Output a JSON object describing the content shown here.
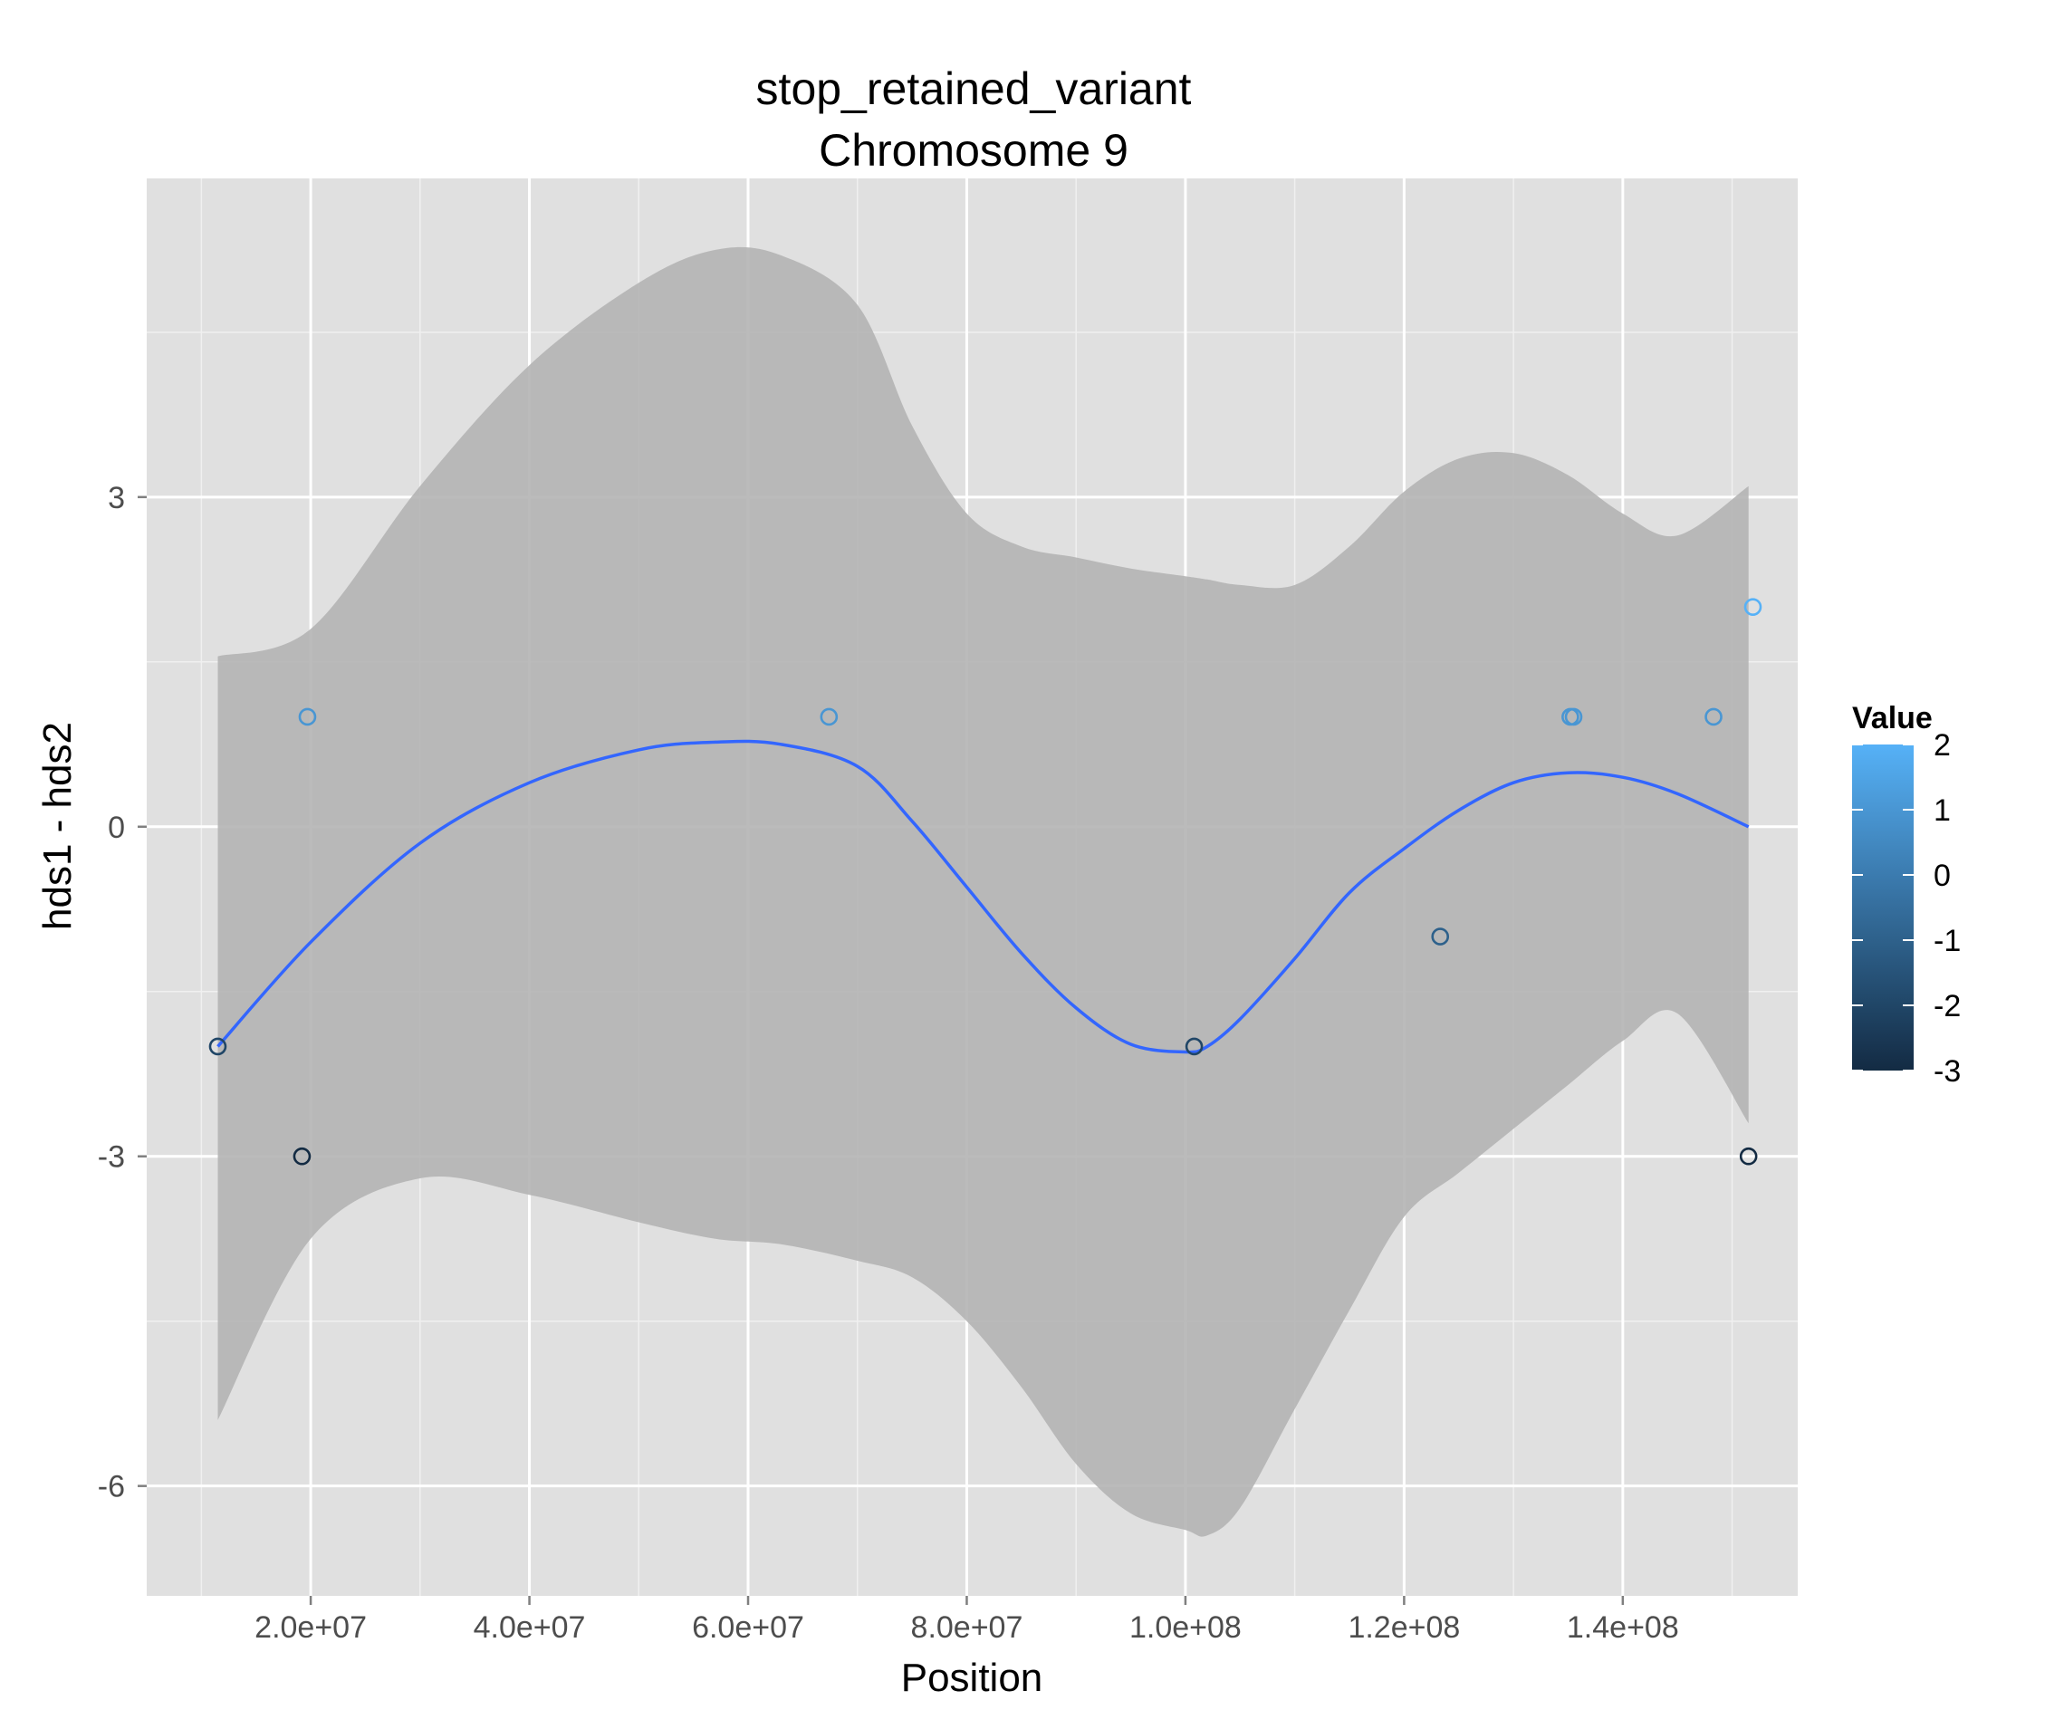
{
  "chart_data": {
    "type": "scatter",
    "title": "stop_retained_variant",
    "subtitle": "Chromosome 9",
    "xlabel": "Position",
    "ylabel": "hds1 - hds2",
    "xlim": [
      5000000,
      156000000
    ],
    "ylim": [
      -7,
      5.9
    ],
    "x_ticks": [
      20000000,
      40000000,
      60000000,
      80000000,
      100000000,
      120000000,
      140000000
    ],
    "x_tick_labels": [
      "2.0e+07",
      "4.0e+07",
      "6.0e+07",
      "8.0e+07",
      "1.0e+08",
      "1.2e+08",
      "1.4e+08"
    ],
    "y_ticks": [
      -6,
      -3,
      0,
      3
    ],
    "y_tick_labels": [
      "-6",
      "-3",
      "0",
      "3"
    ],
    "grid": true,
    "points": [
      {
        "x": 11500000,
        "y": -2
      },
      {
        "x": 19200000,
        "y": -3
      },
      {
        "x": 19700000,
        "y": 1
      },
      {
        "x": 67400000,
        "y": 1
      },
      {
        "x": 100800000,
        "y": -2
      },
      {
        "x": 123300000,
        "y": -1
      },
      {
        "x": 135200000,
        "y": 1
      },
      {
        "x": 135500000,
        "y": 1
      },
      {
        "x": 148300000,
        "y": 1
      },
      {
        "x": 151500000,
        "y": -3
      },
      {
        "x": 151900000,
        "y": 2
      }
    ],
    "smooth": {
      "x": [
        11500000,
        20000000,
        30000000,
        40000000,
        50000000,
        57000000,
        63000000,
        70000000,
        75000000,
        80000000,
        85000000,
        90000000,
        95000000,
        100000000,
        102000000,
        105000000,
        110000000,
        115000000,
        120000000,
        125000000,
        130000000,
        135000000,
        140000000,
        145000000,
        151500000
      ],
      "y": [
        -2.0,
        -1.05,
        -0.15,
        0.4,
        0.7,
        0.77,
        0.75,
        0.55,
        0.05,
        -0.55,
        -1.15,
        -1.65,
        -1.98,
        -2.05,
        -2.0,
        -1.75,
        -1.2,
        -0.6,
        -0.2,
        0.15,
        0.4,
        0.49,
        0.45,
        0.3,
        0.0
      ],
      "upper": [
        1.55,
        1.8,
        3.1,
        4.2,
        4.95,
        5.25,
        5.2,
        4.75,
        3.65,
        2.85,
        2.55,
        2.45,
        2.35,
        2.28,
        2.25,
        2.2,
        2.2,
        2.55,
        3.05,
        3.35,
        3.4,
        3.2,
        2.85,
        2.65,
        3.1
      ],
      "lower": [
        -5.4,
        -3.75,
        -3.2,
        -3.35,
        -3.6,
        -3.75,
        -3.8,
        -3.95,
        -4.1,
        -4.5,
        -5.1,
        -5.8,
        -6.25,
        -6.4,
        -6.45,
        -6.2,
        -5.3,
        -4.4,
        -3.55,
        -3.15,
        -2.75,
        -2.35,
        -1.95,
        -1.7,
        -2.7
      ]
    },
    "legend": {
      "title": "Value",
      "placement": "right",
      "labels": [
        "2",
        "1",
        "0",
        "-1",
        "-2",
        "-3"
      ],
      "values": [
        2,
        1,
        0,
        -1,
        -2,
        -3
      ],
      "low_color": "#132B43",
      "high_color": "#56B1F7"
    },
    "colors": {
      "panel_background": "#E0E0E0",
      "grid_major": "#FFFFFF",
      "grid_minor": "#F0F0F0",
      "ribbon": "#B4B4B4",
      "smooth_line": "#3366FF"
    }
  }
}
